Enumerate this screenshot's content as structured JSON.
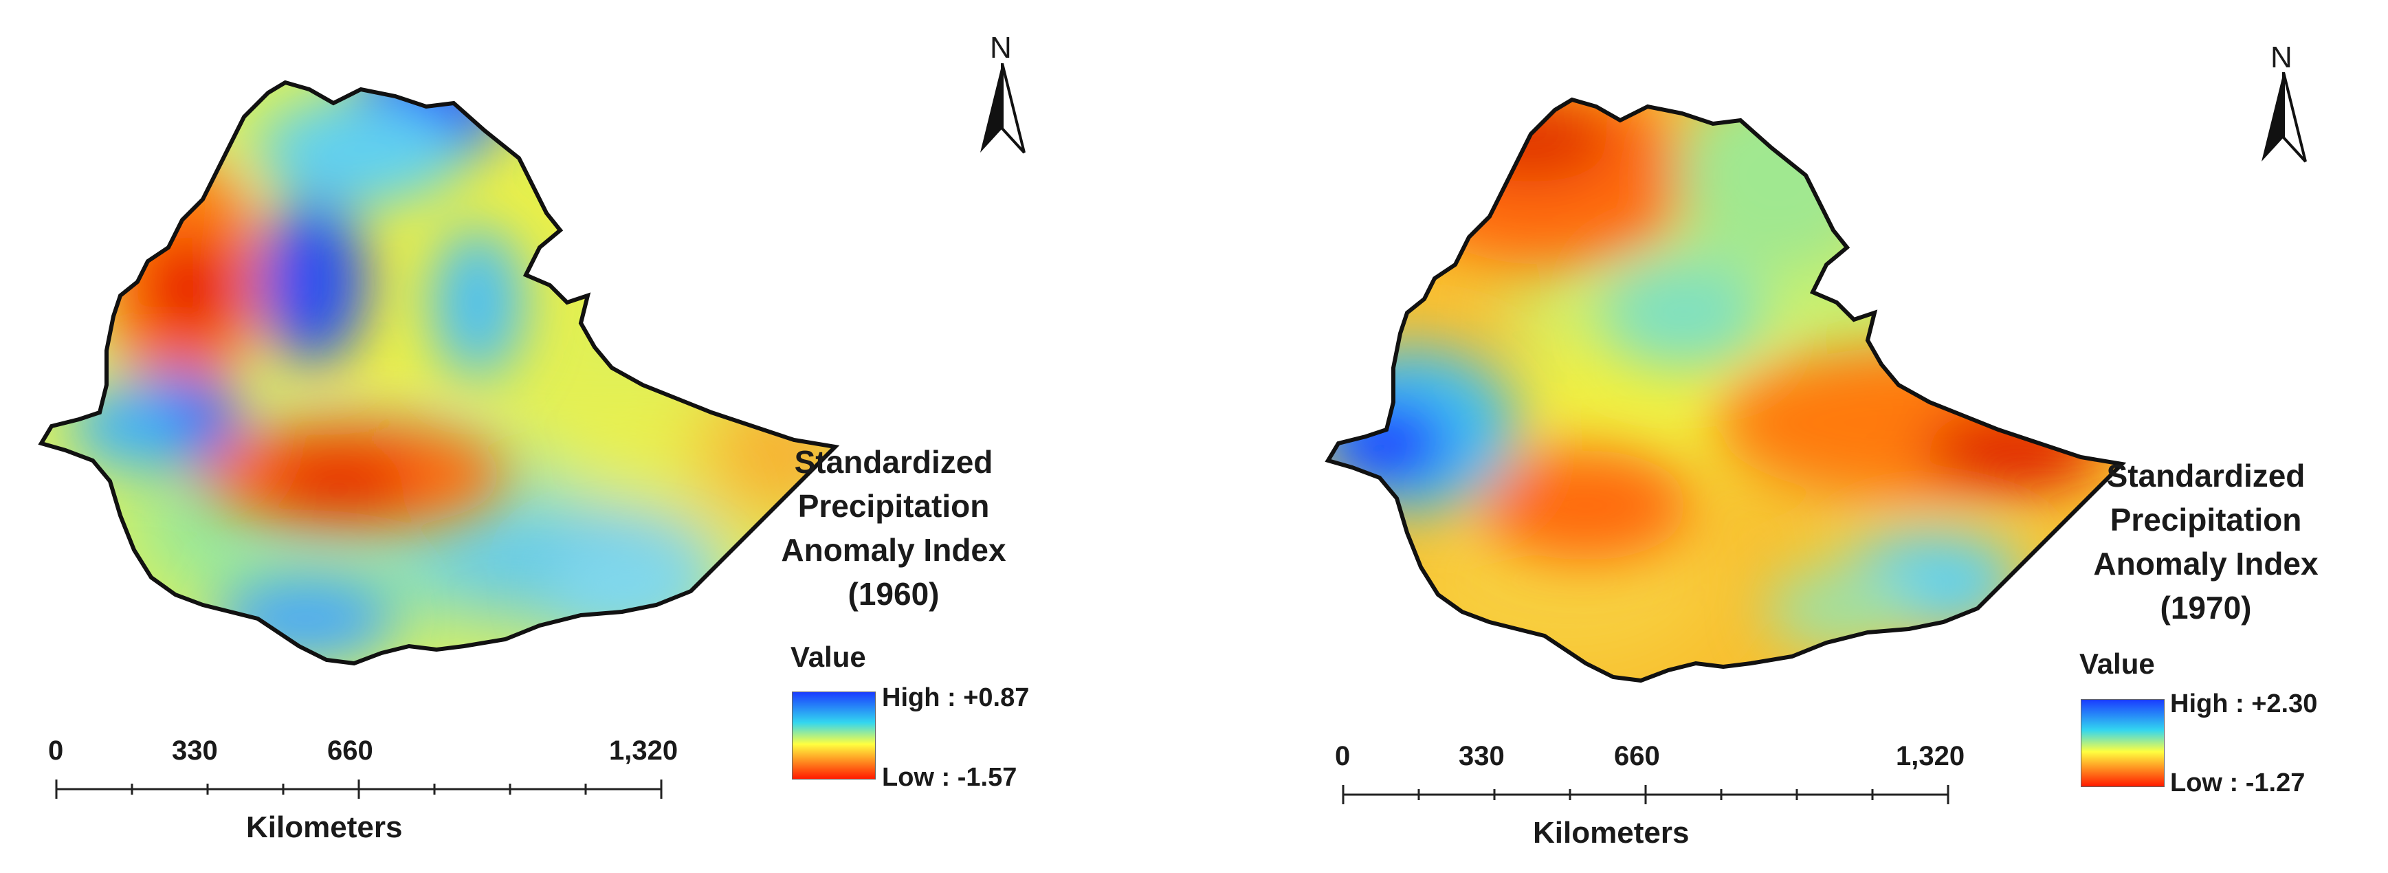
{
  "maps": [
    {
      "north_label": "N",
      "legend": {
        "title_lines": [
          "Standardized",
          "Precipitation",
          "Anomaly Index",
          "(1960)"
        ],
        "value_heading": "Value",
        "high_label": "High : +0.87",
        "low_label": "Low : -1.57"
      },
      "scale": {
        "ticks": [
          "0",
          "330",
          "660",
          "1,320"
        ],
        "unit": "Kilometers"
      }
    },
    {
      "north_label": "N",
      "legend": {
        "title_lines": [
          "Standardized",
          "Precipitation",
          "Anomaly Index",
          "(1970)"
        ],
        "value_heading": "Value",
        "high_label": "High : +2.30",
        "low_label": "Low : -1.27"
      },
      "scale": {
        "ticks": [
          "0",
          "330",
          "660",
          "1,320"
        ],
        "unit": "Kilometers"
      }
    }
  ],
  "colors": {
    "ramp_high": "#1a3cff",
    "ramp_mid_high": "#33d6f0",
    "ramp_mid": "#ffff40",
    "ramp_low": "#ff1a00"
  }
}
